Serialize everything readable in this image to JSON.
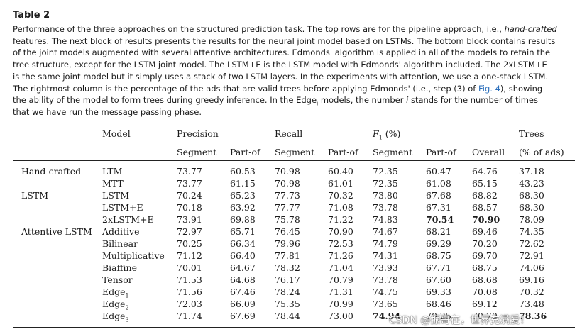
{
  "table_label": "Table 2",
  "caption_lines": [
    [
      "Performance of the three approaches on the structured prediction task. The top rows are for the pipeline approach, i.e., ",
      {
        "i": "hand-crafted"
      }
    ],
    [
      "features. The next block of results presents the results for the neural joint model based on LSTMs. The bottom block contains results"
    ],
    [
      "of the joint models augmented with several attentive architectures. Edmonds' algorithm is applied in all of the models to retain the"
    ],
    [
      "tree structure, except for the LSTM joint model. The LSTM+E is the LSTM model with Edmonds' algorithm included. The 2xLSTM+E"
    ],
    [
      "is the same joint model but it simply uses a stack of two LSTM layers. In the experiments with attention, we use a one-stack LSTM."
    ],
    [
      "The rightmost column is the percentage of the ads that are valid trees before applying Edmonds' (i.e., step (3) of ",
      {
        "link": "Fig. 4"
      },
      "), showing"
    ],
    [
      "the ability of the model to form trees during greedy inference. In the Edge",
      {
        "sub": "i"
      },
      " models, the number ",
      {
        "i": "i"
      },
      " stands for the number of times"
    ],
    [
      "that we have run the message passing phase."
    ]
  ],
  "headers": {
    "model": "Model",
    "precision": "Precision",
    "recall": "Recall",
    "f1": "F",
    "f1_sub": "1",
    "f1_suffix": " (%)",
    "trees": "Trees",
    "sub_segment": "Segment",
    "sub_partof": "Part-of",
    "sub_overall": "Overall",
    "sub_trees": "(% of ads)"
  },
  "rows": [
    {
      "group": "Hand-crafted",
      "model": "LTM",
      "p_seg": "73.77",
      "p_part": "60.53",
      "r_seg": "70.98",
      "r_part": "60.40",
      "f_seg": "72.35",
      "f_part": "60.47",
      "f_all": "64.76",
      "trees": "37.18"
    },
    {
      "group": "",
      "model": "MTT",
      "p_seg": "73.77",
      "p_part": "61.15",
      "r_seg": "70.98",
      "r_part": "61.01",
      "f_seg": "72.35",
      "f_part": "61.08",
      "f_all": "65.15",
      "trees": "43.23"
    },
    {
      "group": "LSTM",
      "model": "LSTM",
      "p_seg": "70.24",
      "p_part": "65.23",
      "r_seg": "77.73",
      "r_part": "70.32",
      "f_seg": "73.80",
      "f_part": "67.68",
      "f_all": "68.82",
      "trees": "68.30"
    },
    {
      "group": "",
      "model": "LSTM+E",
      "p_seg": "70.18",
      "p_part": "63.92",
      "r_seg": "77.77",
      "r_part": "71.08",
      "f_seg": "73.78",
      "f_part": "67.31",
      "f_all": "68.57",
      "trees": "68.30"
    },
    {
      "group": "",
      "model": "2xLSTM+E",
      "p_seg": "73.91",
      "p_part": "69.88",
      "r_seg": "75.78",
      "r_part": "71.22",
      "f_seg": "74.83",
      "f_part": "70.54",
      "f_all": "70.90",
      "trees": "78.09",
      "bold": [
        "f_part",
        "f_all"
      ]
    },
    {
      "group": "Attentive LSTM",
      "model": "Additive",
      "p_seg": "72.97",
      "p_part": "65.71",
      "r_seg": "76.45",
      "r_part": "70.90",
      "f_seg": "74.67",
      "f_part": "68.21",
      "f_all": "69.46",
      "trees": "74.35"
    },
    {
      "group": "",
      "model": "Bilinear",
      "p_seg": "70.25",
      "p_part": "66.34",
      "r_seg": "79.96",
      "r_part": "72.53",
      "f_seg": "74.79",
      "f_part": "69.29",
      "f_all": "70.20",
      "trees": "72.62"
    },
    {
      "group": "",
      "model": "Multiplicative",
      "p_seg": "71.12",
      "p_part": "66.40",
      "r_seg": "77.81",
      "r_part": "71.26",
      "f_seg": "74.31",
      "f_part": "68.75",
      "f_all": "69.70",
      "trees": "72.91"
    },
    {
      "group": "",
      "model": "Biaffine",
      "p_seg": "70.01",
      "p_part": "64.67",
      "r_seg": "78.32",
      "r_part": "71.04",
      "f_seg": "73.93",
      "f_part": "67.71",
      "f_all": "68.75",
      "trees": "74.06"
    },
    {
      "group": "",
      "model": "Tensor",
      "p_seg": "71.53",
      "p_part": "64.68",
      "r_seg": "76.17",
      "r_part": "70.79",
      "f_seg": "73.78",
      "f_part": "67.60",
      "f_all": "68.68",
      "trees": "69.16"
    },
    {
      "group": "",
      "model": "Edge",
      "model_sub": "1",
      "p_seg": "71.56",
      "p_part": "67.46",
      "r_seg": "78.24",
      "r_part": "71.31",
      "f_seg": "74.75",
      "f_part": "69.33",
      "f_all": "70.08",
      "trees": "70.32"
    },
    {
      "group": "",
      "model": "Edge",
      "model_sub": "2",
      "p_seg": "72.03",
      "p_part": "66.09",
      "r_seg": "75.35",
      "r_part": "70.99",
      "f_seg": "73.65",
      "f_part": "68.46",
      "f_all": "69.12",
      "trees": "73.48"
    },
    {
      "group": "",
      "model": "Edge",
      "model_sub": "3",
      "p_seg": "71.74",
      "p_part": "67.69",
      "r_seg": "78.44",
      "r_part": "73.00",
      "f_seg": "74.94",
      "f_part": "70.25",
      "f_all": "70.70",
      "trees": "78.36",
      "bold": [
        "f_seg",
        "trees"
      ]
    }
  ],
  "watermark": "CSDN @振哥在，世界充满爱！"
}
